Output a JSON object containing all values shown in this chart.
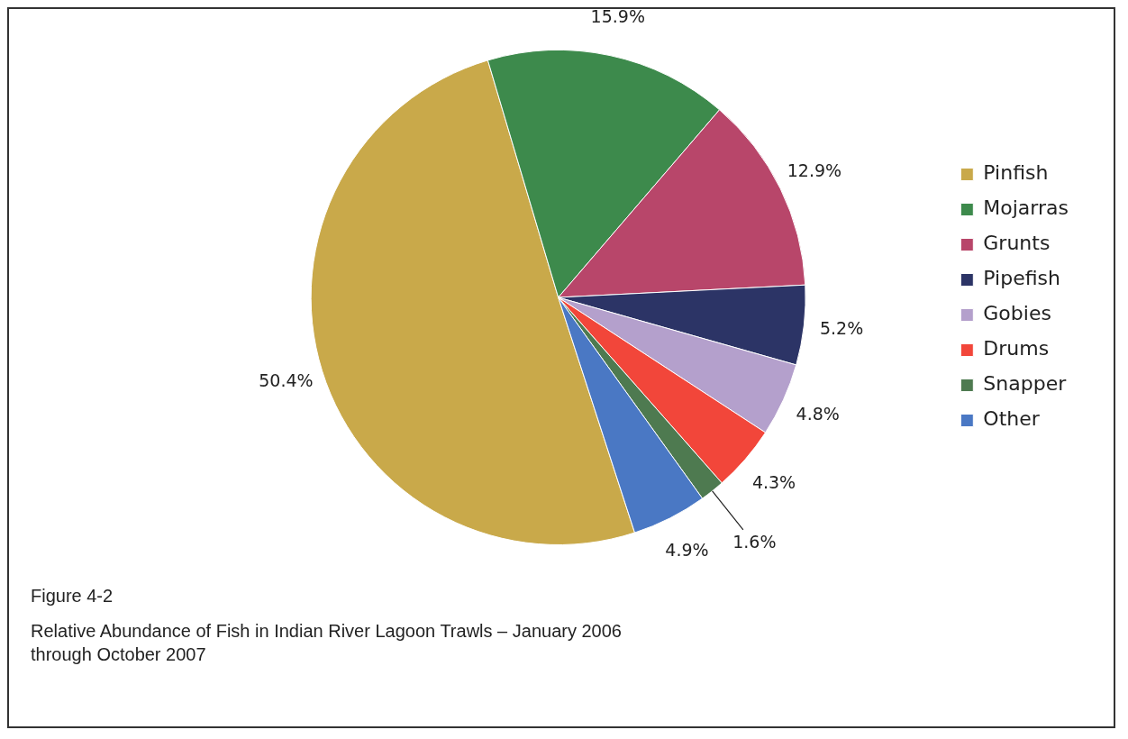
{
  "chart_data": {
    "type": "pie",
    "title": "Relative Abundance of Fish in Indian River Lagoon Trawls – January 2006 through October 2007",
    "annotations": [
      "Figure 4-2"
    ],
    "categories": [
      "Pinfish",
      "Mojarras",
      "Grunts",
      "Pipefish",
      "Gobies",
      "Drums",
      "Snapper",
      "Other"
    ],
    "values": [
      50.4,
      15.9,
      12.9,
      5.2,
      4.8,
      4.3,
      1.6,
      4.9
    ],
    "colors": [
      "#c9a94a",
      "#3d8a4c",
      "#b8466a",
      "#2c3466",
      "#b4a0cc",
      "#f2463a",
      "#4e7a50",
      "#4a78c4"
    ],
    "value_labels": [
      "50.4%",
      "15.9%",
      "12.9%",
      "5.2%",
      "4.8%",
      "4.3%",
      "1.6%",
      "4.9%"
    ],
    "legend": "right"
  }
}
